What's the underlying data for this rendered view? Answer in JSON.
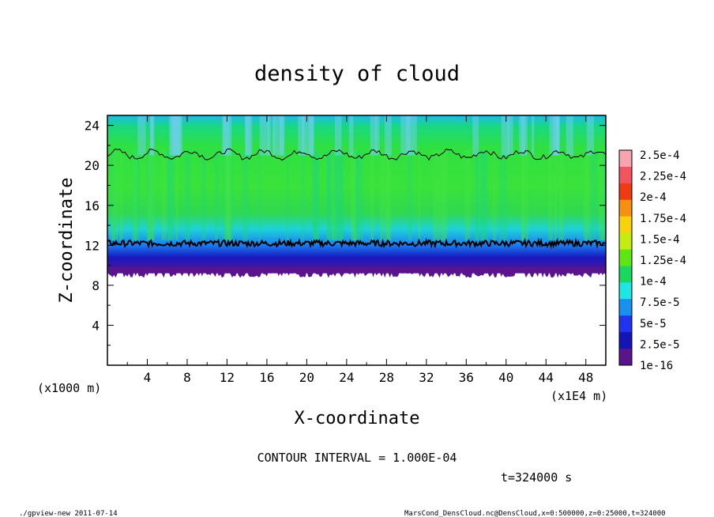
{
  "chart_data": {
    "type": "heatmap",
    "title": "density of cloud",
    "xlabel": "X-coordinate",
    "ylabel": "Z-coordinate",
    "x_unit_label": "(x1E4 m)",
    "y_unit_label": "(x1000 m)",
    "xlim": [
      0,
      50
    ],
    "ylim": [
      0,
      25
    ],
    "x_ticks": [
      "4",
      "8",
      "12",
      "16",
      "20",
      "24",
      "28",
      "32",
      "36",
      "40",
      "44",
      "48"
    ],
    "y_ticks": [
      "4",
      "8",
      "12",
      "16",
      "20",
      "24"
    ],
    "x_tick_values": [
      4,
      8,
      12,
      16,
      20,
      24,
      28,
      32,
      36,
      40,
      44,
      48
    ],
    "y_tick_values": [
      4,
      8,
      12,
      16,
      20,
      24
    ],
    "colorbar": {
      "labels": [
        "2.5e-4",
        "2.25e-4",
        "2e-4",
        "1.75e-4",
        "1.5e-4",
        "1.25e-4",
        "1e-4",
        "7.5e-5",
        "5e-5",
        "2.5e-5",
        "1e-16"
      ],
      "colors": [
        "#f8a4b0",
        "#f2545e",
        "#f03a12",
        "#f7900f",
        "#f8d20c",
        "#c3ec10",
        "#5fe512",
        "#18d860",
        "#1fe6e4",
        "#1890f0",
        "#2033ee",
        "#1414b8",
        "#5a148e"
      ]
    },
    "cloud_base_z": 9.2,
    "cloud_top_z": 21.2,
    "contour_level_z": 12.2,
    "contour_interval_text": "CONTOUR INTERVAL = 1.000E-04",
    "time_text": "t=324000 s"
  },
  "footer": {
    "left": "./gpview-new  2011-07-14",
    "right": "MarsCond_DensCloud.nc@DensCloud,x=0:500000,z=0:25000,t=324000"
  }
}
